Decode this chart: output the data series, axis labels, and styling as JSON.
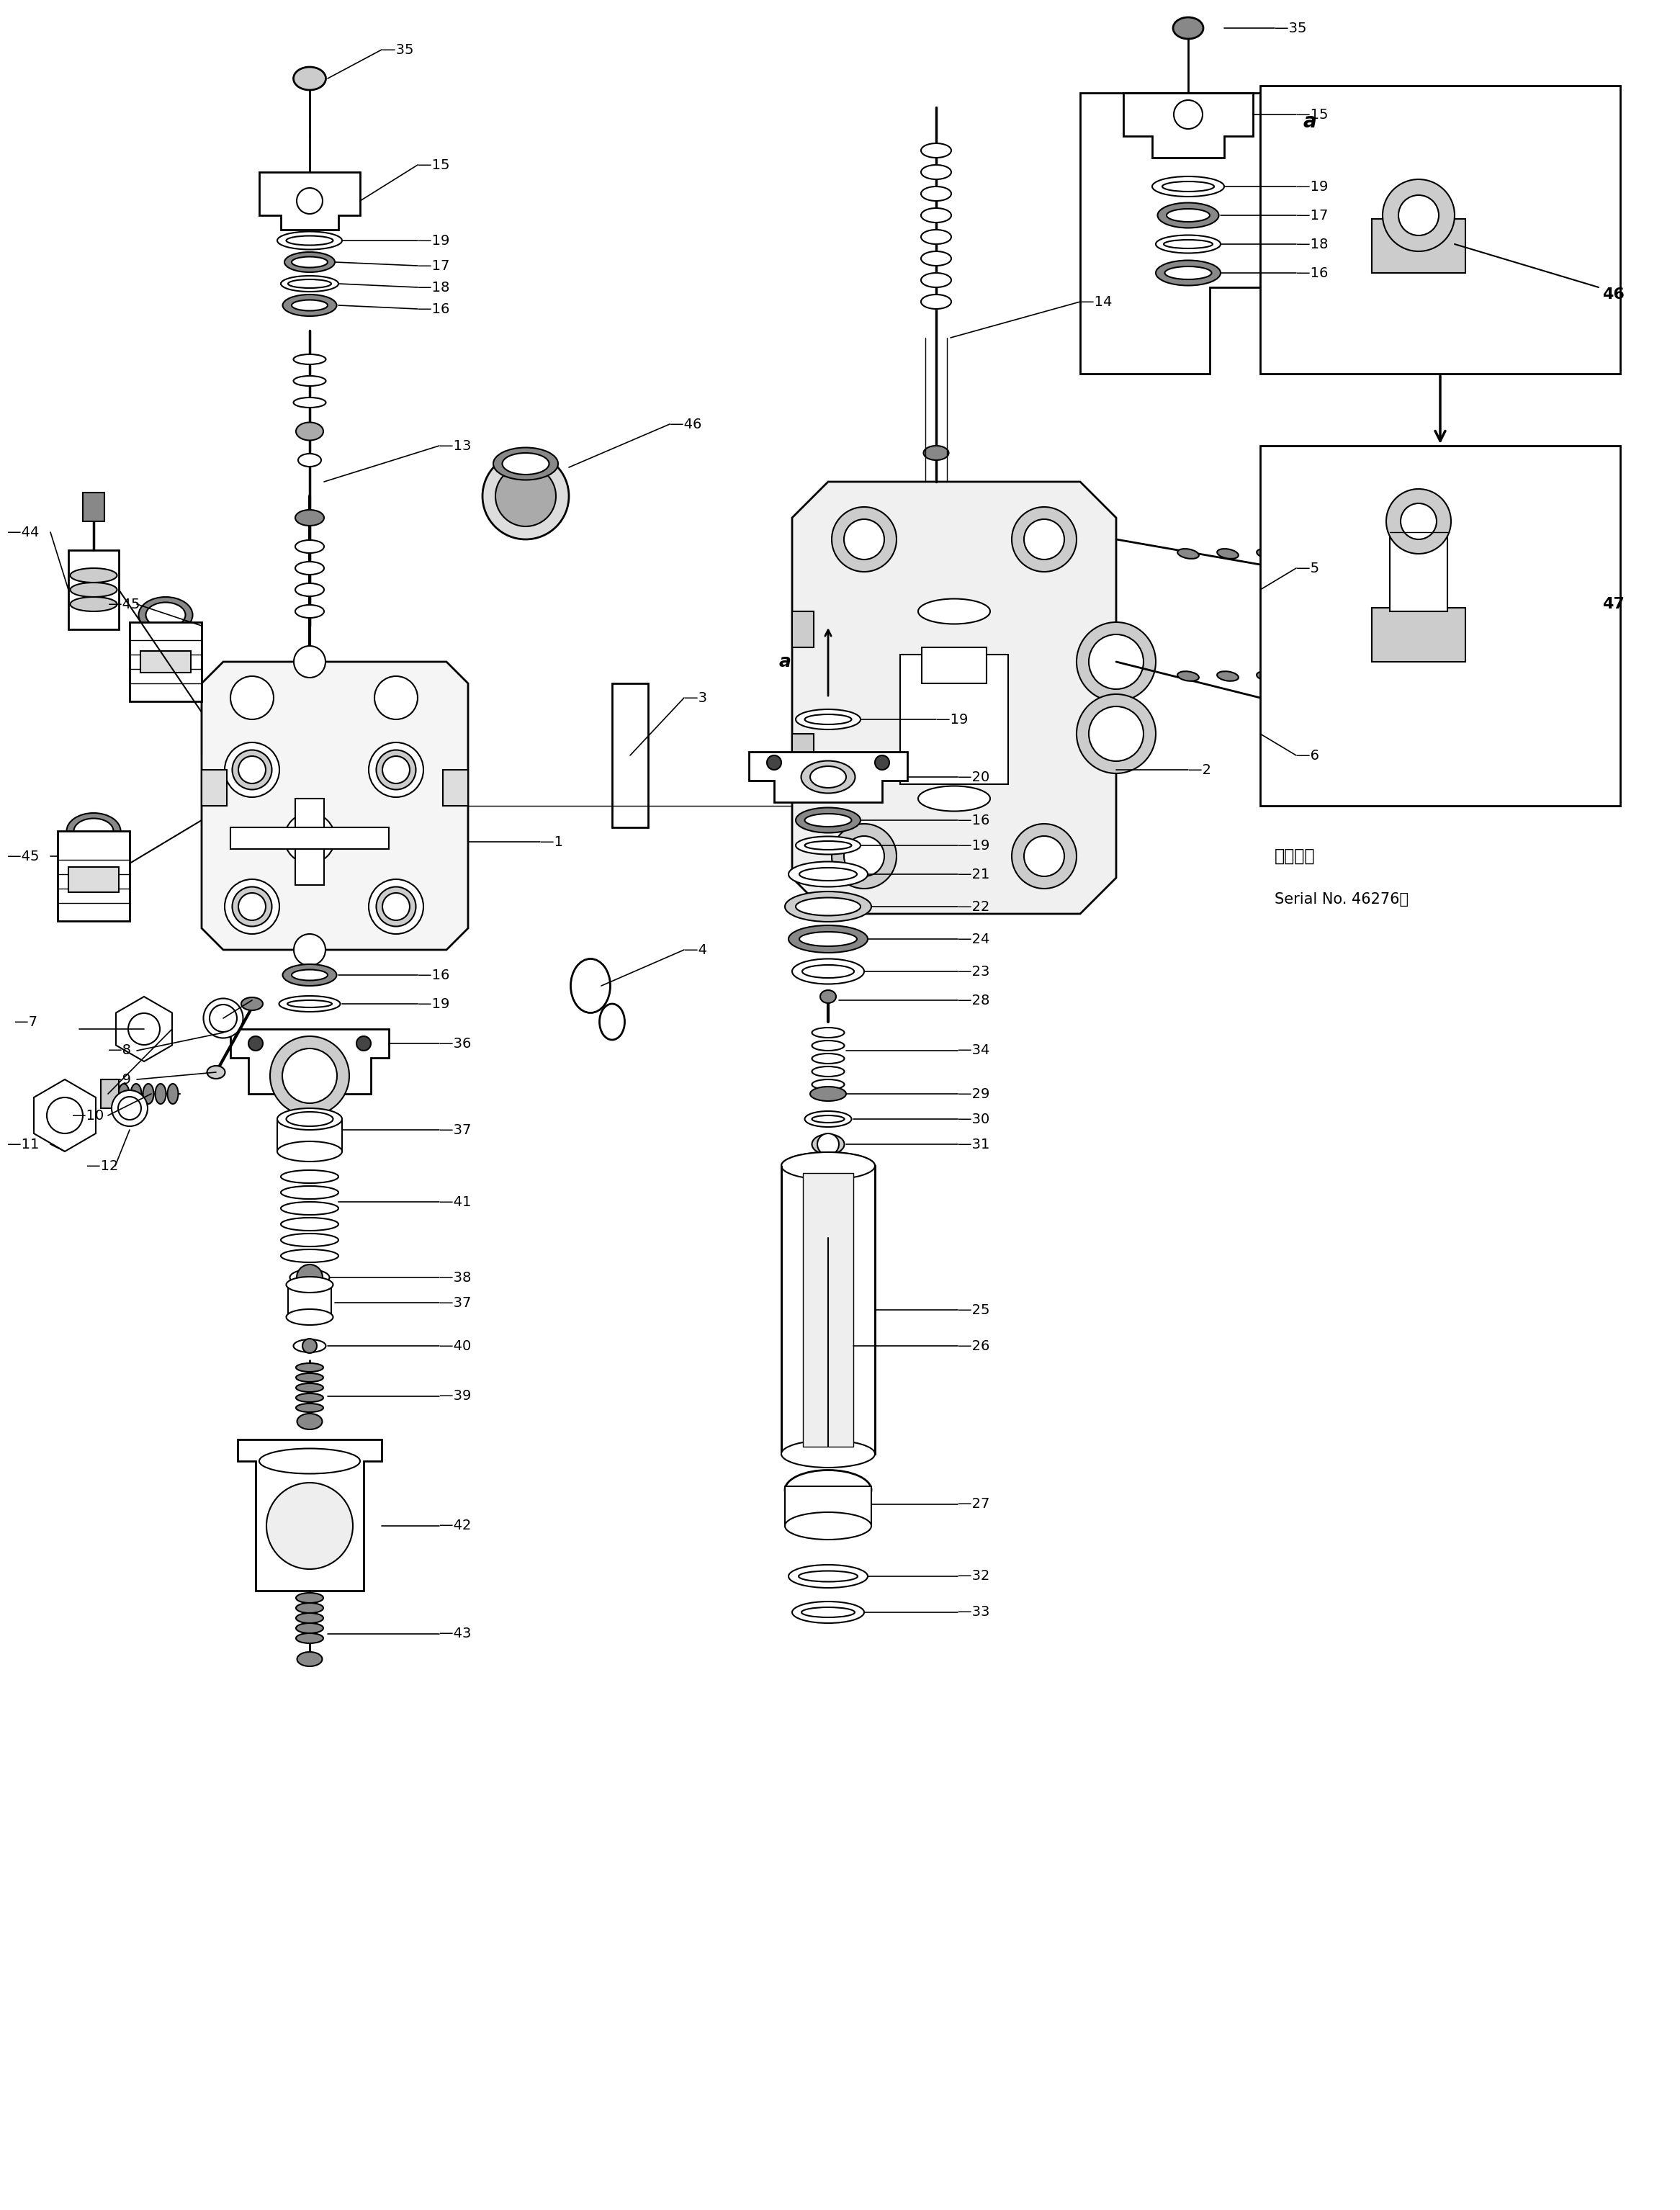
{
  "background_color": "#ffffff",
  "fig_width": 23.33,
  "fig_height": 30.69,
  "line_color": "#000000",
  "text_color": "#000000",
  "serial_text": "Serial No. 46276～",
  "applicable_text": "適用号機",
  "lw_body": 2.0,
  "lw_part": 1.5,
  "lw_leader": 1.2,
  "fs_label": 14
}
